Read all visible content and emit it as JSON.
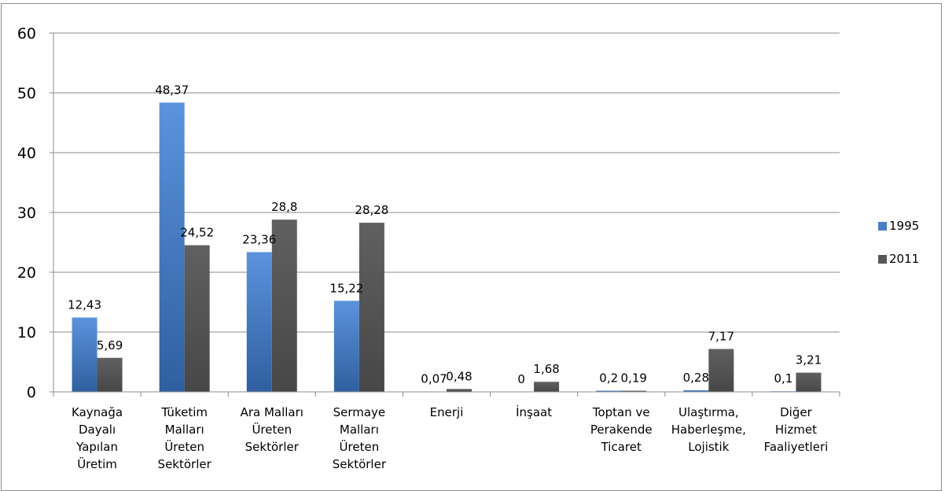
{
  "chart_data": {
    "type": "bar",
    "categories": [
      [
        "Kaynağa",
        "Dayalı",
        "Yapılan",
        "Üretim"
      ],
      [
        "Tüketim",
        "Malları",
        "Üreten",
        "Sektörler"
      ],
      [
        "Ara Malları",
        "Üreten",
        "Sektörler"
      ],
      [
        "Sermaye",
        "Malları",
        "Üreten",
        "Sektörler"
      ],
      [
        "Enerji"
      ],
      [
        "İnşaat"
      ],
      [
        "Toptan ve",
        "Perakende",
        "Ticaret"
      ],
      [
        "Ulaştırma,",
        "Haberleşme,",
        "Lojistik"
      ],
      [
        "Diğer",
        "Hizmet",
        "Faaliyetleri"
      ]
    ],
    "series": [
      {
        "name": "1995",
        "color": "#4a80c8",
        "values": [
          12.43,
          48.37,
          23.36,
          15.22,
          0.07,
          0,
          0.2,
          0.28,
          0.1
        ],
        "labels": [
          "12,43",
          "48,37",
          "23,36",
          "15,22",
          "0,07",
          "0",
          "0,2",
          "0,28",
          "0,1"
        ]
      },
      {
        "name": "2011",
        "color": "#575757",
        "values": [
          5.69,
          24.52,
          28.8,
          28.28,
          0.48,
          1.68,
          0.19,
          7.17,
          3.21
        ],
        "labels": [
          "5,69",
          "24,52",
          "28,8",
          "28,28",
          "0,48",
          "1,68",
          "0,19",
          "7,17",
          "3,21"
        ]
      }
    ],
    "yticks": [
      "0",
      "10",
      "20",
      "30",
      "40",
      "50",
      "60"
    ],
    "ylim": [
      0,
      60
    ],
    "grid": true,
    "legend": "right"
  }
}
